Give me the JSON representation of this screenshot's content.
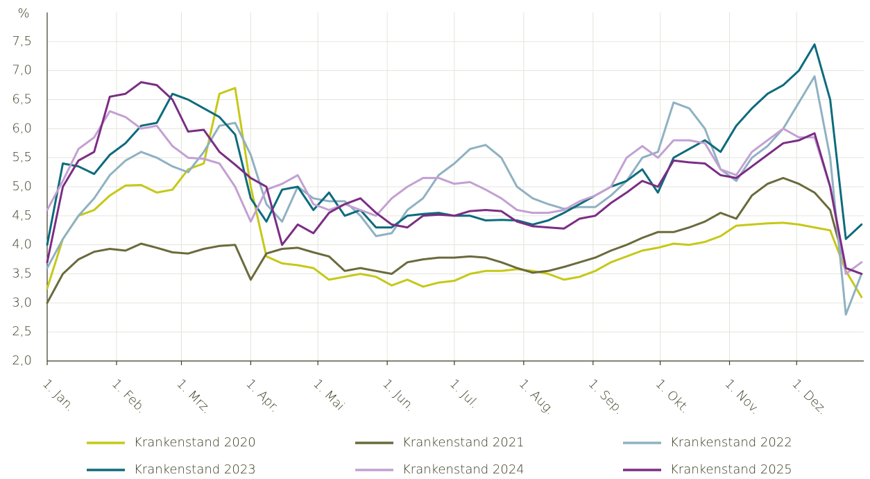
{
  "chart_data": {
    "type": "line",
    "y_label": "%",
    "x": [
      1,
      8,
      15,
      22,
      29,
      36,
      43,
      50,
      57,
      64,
      71,
      78,
      85,
      92,
      99,
      106,
      113,
      120,
      127,
      134,
      141,
      148,
      155,
      162,
      169,
      176,
      183,
      190,
      197,
      204,
      211,
      218,
      225,
      232,
      239,
      246,
      253,
      260,
      267,
      274,
      281,
      288,
      295,
      302,
      309,
      316,
      323,
      330,
      337,
      344,
      351,
      358,
      365
    ],
    "xlim": [
      1,
      366
    ],
    "xticks": [
      {
        "value": 1,
        "label": "1. Jan."
      },
      {
        "value": 32,
        "label": "1. Feb."
      },
      {
        "value": 61,
        "label": "1. Mrz."
      },
      {
        "value": 92,
        "label": "1. Apr."
      },
      {
        "value": 122,
        "label": "1. Mai"
      },
      {
        "value": 153,
        "label": "1. Jun."
      },
      {
        "value": 183,
        "label": "1. Jul."
      },
      {
        "value": 214,
        "label": "1. Aug."
      },
      {
        "value": 245,
        "label": "1. Sep."
      },
      {
        "value": 275,
        "label": "1. Okt."
      },
      {
        "value": 306,
        "label": "1. Nov."
      },
      {
        "value": 336,
        "label": "1. Dez."
      }
    ],
    "ylim": [
      2,
      8
    ],
    "yticks": [
      {
        "value": 2,
        "label": "2,0"
      },
      {
        "value": 2.5,
        "label": "2,5"
      },
      {
        "value": 3,
        "label": "3,0"
      },
      {
        "value": 3.5,
        "label": "3,5"
      },
      {
        "value": 4,
        "label": "4,0"
      },
      {
        "value": 4.5,
        "label": "4,5"
      },
      {
        "value": 5,
        "label": "5,0"
      },
      {
        "value": 5.5,
        "label": "5,5"
      },
      {
        "value": 6,
        "label": "6,0"
      },
      {
        "value": 6.5,
        "label": "6,5"
      },
      {
        "value": 7,
        "label": "7,0"
      },
      {
        "value": 7.5,
        "label": "7,5"
      }
    ],
    "grid": true,
    "series": [
      {
        "name": "Krankenstand 2020",
        "color": "#c6c816",
        "values": [
          3.25,
          4.1,
          4.5,
          4.6,
          4.85,
          5.02,
          5.03,
          4.9,
          4.95,
          5.3,
          5.4,
          6.6,
          6.7,
          5.0,
          3.8,
          3.68,
          3.65,
          3.6,
          3.4,
          3.45,
          3.5,
          3.45,
          3.3,
          3.4,
          3.28,
          3.35,
          3.38,
          3.5,
          3.55,
          3.55,
          3.58,
          3.55,
          3.5,
          3.4,
          3.45,
          3.55,
          3.7,
          3.8,
          3.9,
          3.95,
          4.02,
          4.0,
          4.05,
          4.15,
          4.33,
          4.35,
          4.37,
          4.38,
          4.35,
          4.3,
          4.25,
          3.55,
          3.1
        ]
      },
      {
        "name": "Krankenstand 2021",
        "color": "#6b6a3c",
        "values": [
          3.0,
          3.5,
          3.75,
          3.88,
          3.93,
          3.9,
          4.02,
          3.95,
          3.87,
          3.85,
          3.93,
          3.98,
          4.0,
          3.4,
          3.85,
          3.93,
          3.95,
          3.87,
          3.8,
          3.55,
          3.6,
          3.55,
          3.5,
          3.7,
          3.75,
          3.78,
          3.78,
          3.8,
          3.78,
          3.7,
          3.6,
          3.52,
          3.55,
          3.62,
          3.7,
          3.78,
          3.9,
          4.0,
          4.12,
          4.22,
          4.22,
          4.3,
          4.4,
          4.55,
          4.45,
          4.85,
          5.05,
          5.15,
          5.05,
          4.9,
          4.6,
          3.6,
          3.5
        ]
      },
      {
        "name": "Krankenstand 2022",
        "color": "#8fb1c2",
        "values": [
          3.6,
          4.1,
          4.5,
          4.8,
          5.2,
          5.45,
          5.6,
          5.5,
          5.35,
          5.25,
          5.6,
          6.05,
          6.1,
          5.55,
          4.7,
          4.4,
          5.0,
          4.8,
          4.75,
          4.75,
          4.5,
          4.15,
          4.2,
          4.6,
          4.8,
          5.2,
          5.4,
          5.65,
          5.72,
          5.5,
          5.0,
          4.8,
          4.7,
          4.62,
          4.65,
          4.65,
          4.85,
          5.1,
          5.5,
          5.6,
          6.45,
          6.35,
          6.0,
          5.3,
          5.1,
          5.5,
          5.7,
          6.0,
          6.45,
          6.9,
          5.5,
          2.8,
          3.5
        ]
      },
      {
        "name": "Krankenstand 2023",
        "color": "#0d6b7c",
        "values": [
          4.0,
          5.4,
          5.35,
          5.22,
          5.55,
          5.75,
          6.05,
          6.1,
          6.6,
          6.5,
          6.35,
          6.2,
          5.9,
          4.8,
          4.4,
          4.95,
          5.0,
          4.6,
          4.9,
          4.5,
          4.6,
          4.3,
          4.3,
          4.5,
          4.53,
          4.55,
          4.5,
          4.5,
          4.42,
          4.43,
          4.42,
          4.35,
          4.42,
          4.55,
          4.7,
          4.85,
          5.0,
          5.1,
          5.3,
          4.9,
          5.5,
          5.65,
          5.8,
          5.6,
          6.05,
          6.35,
          6.6,
          6.75,
          7.0,
          7.45,
          6.5,
          4.1,
          4.35
        ]
      },
      {
        "name": "Krankenstand 2024",
        "color": "#c3a0d2",
        "values": [
          4.6,
          5.1,
          5.65,
          5.85,
          6.3,
          6.2,
          6.0,
          6.05,
          5.7,
          5.5,
          5.48,
          5.4,
          5.0,
          4.4,
          4.95,
          5.05,
          5.2,
          4.7,
          4.6,
          4.7,
          4.6,
          4.5,
          4.8,
          5.0,
          5.15,
          5.15,
          5.05,
          5.08,
          4.95,
          4.8,
          4.6,
          4.55,
          4.55,
          4.6,
          4.75,
          4.85,
          5.0,
          5.5,
          5.7,
          5.5,
          5.8,
          5.8,
          5.75,
          5.3,
          5.2,
          5.6,
          5.8,
          6.0,
          5.85,
          5.85,
          5.0,
          3.5,
          3.7
        ]
      },
      {
        "name": "Krankenstand 2025",
        "color": "#7b2d84",
        "values": [
          3.7,
          5.0,
          5.45,
          5.6,
          6.55,
          6.6,
          6.8,
          6.75,
          6.5,
          5.95,
          5.98,
          5.6,
          5.38,
          5.15,
          5.0,
          4.0,
          4.35,
          4.2,
          4.55,
          4.7,
          4.8,
          4.55,
          4.35,
          4.3,
          4.5,
          4.52,
          4.5,
          4.58,
          4.6,
          4.58,
          4.4,
          4.32,
          4.3,
          4.28,
          4.45,
          4.5,
          4.72,
          4.9,
          5.1,
          5.0,
          5.45,
          5.42,
          5.4,
          5.2,
          5.15,
          5.35,
          5.55,
          5.75,
          5.8,
          5.92,
          5.0,
          3.6,
          3.5
        ]
      }
    ]
  }
}
